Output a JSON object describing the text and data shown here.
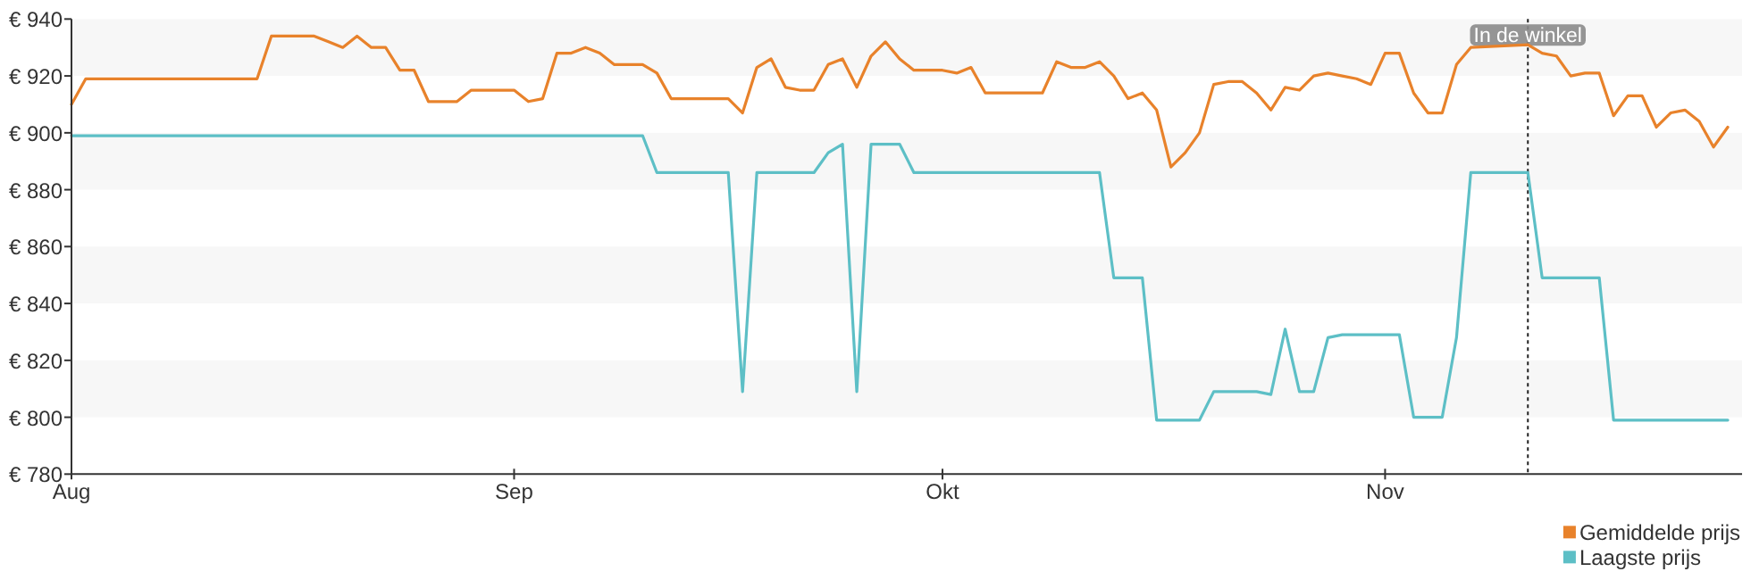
{
  "chart_data": {
    "type": "line",
    "xlim": [
      "--08-01",
      "--11-26"
    ],
    "xticks": [
      {
        "value": "--08-01",
        "label": "Aug"
      },
      {
        "value": "--09-01",
        "label": "Sep"
      },
      {
        "value": "--10-01",
        "label": "Okt"
      },
      {
        "value": "--11-01",
        "label": "Nov"
      }
    ],
    "ylim": [
      780,
      940
    ],
    "yticks": [
      {
        "value": 780,
        "label": "€ 780"
      },
      {
        "value": 800,
        "label": "€ 800"
      },
      {
        "value": 820,
        "label": "€ 820"
      },
      {
        "value": 840,
        "label": "€ 840"
      },
      {
        "value": 860,
        "label": "€ 860"
      },
      {
        "value": 880,
        "label": "€ 880"
      },
      {
        "value": 900,
        "label": "€ 900"
      },
      {
        "value": 920,
        "label": "€ 920"
      },
      {
        "value": 940,
        "label": "€ 940"
      }
    ],
    "bands": [
      {
        "axis": "y",
        "from": 800,
        "to": 820,
        "color": "#f7f7f7"
      },
      {
        "axis": "y",
        "from": 840,
        "to": 860,
        "color": "#f7f7f7"
      },
      {
        "axis": "y",
        "from": 880,
        "to": 900,
        "color": "#f7f7f7"
      },
      {
        "axis": "y",
        "from": 920,
        "to": 940,
        "color": "#f7f7f7"
      }
    ],
    "ref_lines": [
      {
        "axis": "x",
        "value": "--11-11",
        "label": "In de winkel",
        "color": "#222222",
        "line_style": "dotted"
      }
    ],
    "legend": "bottom right",
    "series": [
      {
        "name": "Gemiddelde prijs",
        "color": "#e8822b",
        "x": [
          "--08-01",
          "--08-02",
          "--08-14",
          "--08-15",
          "--08-18",
          "--08-19",
          "--08-20",
          "--08-21",
          "--08-22",
          "--08-23",
          "--08-24",
          "--08-25",
          "--08-26",
          "--08-28",
          "--08-29",
          "--09-01",
          "--09-02",
          "--09-03",
          "--09-04",
          "--09-05",
          "--09-06",
          "--09-07",
          "--09-08",
          "--09-10",
          "--09-11",
          "--09-12",
          "--09-16",
          "--09-17",
          "--09-18",
          "--09-19",
          "--09-20",
          "--09-21",
          "--09-22",
          "--09-23",
          "--09-24",
          "--09-25",
          "--09-26",
          "--09-27",
          "--09-28",
          "--09-29",
          "--10-01",
          "--10-02",
          "--10-03",
          "--10-04",
          "--10-08",
          "--10-09",
          "--10-10",
          "--10-11",
          "--10-12",
          "--10-13",
          "--10-14",
          "--10-15",
          "--10-16",
          "--10-17",
          "--10-18",
          "--10-19",
          "--10-20",
          "--10-21",
          "--10-22",
          "--10-23",
          "--10-24",
          "--10-25",
          "--10-26",
          "--10-27",
          "--10-28",
          "--10-29",
          "--10-30",
          "--10-31",
          "--11-01",
          "--11-02",
          "--11-03",
          "--11-04",
          "--11-05",
          "--11-06",
          "--11-07",
          "--11-11",
          "--11-12",
          "--11-13",
          "--11-14",
          "--11-15",
          "--11-16",
          "--11-17",
          "--11-18",
          "--11-19",
          "--11-20",
          "--11-21",
          "--11-22",
          "--11-23",
          "--11-24",
          "--11-25"
        ],
        "values": [
          910,
          919,
          919,
          934,
          934,
          932,
          930,
          934,
          930,
          930,
          922,
          922,
          911,
          911,
          915,
          915,
          911,
          912,
          928,
          928,
          930,
          928,
          924,
          924,
          921,
          912,
          912,
          907,
          923,
          926,
          916,
          915,
          915,
          924,
          926,
          916,
          927,
          932,
          926,
          922,
          922,
          921,
          923,
          914,
          914,
          925,
          923,
          923,
          925,
          920,
          912,
          914,
          908,
          888,
          893,
          900,
          917,
          918,
          918,
          914,
          908,
          916,
          915,
          920,
          921,
          920,
          919,
          917,
          928,
          928,
          914,
          907,
          907,
          924,
          930,
          931,
          928,
          927,
          920,
          921,
          921,
          906,
          913,
          913,
          902,
          907,
          908,
          904,
          895,
          902
        ]
      },
      {
        "name": "Laagste prijs",
        "color": "#5dbfc6",
        "x": [
          "--08-01",
          "--09-10",
          "--09-11",
          "--09-16",
          "--09-17",
          "--09-18",
          "--09-22",
          "--09-23",
          "--09-24",
          "--09-25",
          "--09-26",
          "--09-28",
          "--09-29",
          "--10-12",
          "--10-13",
          "--10-15",
          "--10-16",
          "--10-19",
          "--10-20",
          "--10-23",
          "--10-24",
          "--10-25",
          "--10-26",
          "--10-27",
          "--10-28",
          "--10-29",
          "--11-02",
          "--11-03",
          "--11-05",
          "--11-06",
          "--11-07",
          "--11-11",
          "--11-12",
          "--11-16",
          "--11-17",
          "--11-25"
        ],
        "values": [
          899,
          899,
          886,
          886,
          809,
          886,
          886,
          893,
          896,
          809,
          896,
          896,
          886,
          886,
          849,
          849,
          799,
          799,
          809,
          809,
          808,
          831,
          809,
          809,
          828,
          829,
          829,
          800,
          800,
          828,
          886,
          886,
          849,
          849,
          799,
          799
        ]
      }
    ]
  }
}
